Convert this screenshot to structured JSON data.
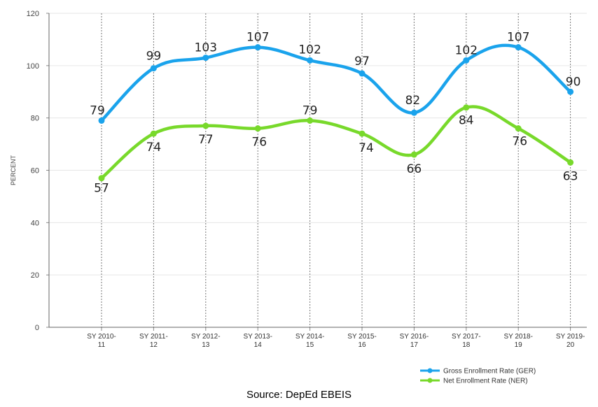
{
  "chart_data": {
    "type": "line",
    "title": "",
    "ylabel": "PERCENT",
    "xlabel": "",
    "ylim": [
      0,
      120
    ],
    "yticks": [
      0,
      20,
      40,
      60,
      80,
      100,
      120
    ],
    "categories": [
      [
        "SY 2010-",
        "11"
      ],
      [
        "SY 2011-",
        "12"
      ],
      [
        "SY 2012-",
        "13"
      ],
      [
        "SY 2013-",
        "14"
      ],
      [
        "SY 2014-",
        "15"
      ],
      [
        "SY 2015-",
        "16"
      ],
      [
        "SY 2016-",
        "17"
      ],
      [
        "SY 2017-",
        "18"
      ],
      [
        "SY 2018-",
        "19"
      ],
      [
        "SY 2019-",
        "20"
      ]
    ],
    "series": [
      {
        "name": "Gross Enrollment Rate (GER)",
        "color": "#1aa3ec",
        "values": [
          79,
          99,
          103,
          107,
          102,
          97,
          82,
          102,
          107,
          90
        ]
      },
      {
        "name": "Net Enrollment Rate (NER)",
        "color": "#78d92b",
        "values": [
          57,
          74,
          77,
          76,
          79,
          74,
          66,
          84,
          76,
          63
        ]
      }
    ],
    "grid": "vertical-dotted",
    "legend": "bottom-right"
  },
  "source": "Source: DepEd EBEIS"
}
